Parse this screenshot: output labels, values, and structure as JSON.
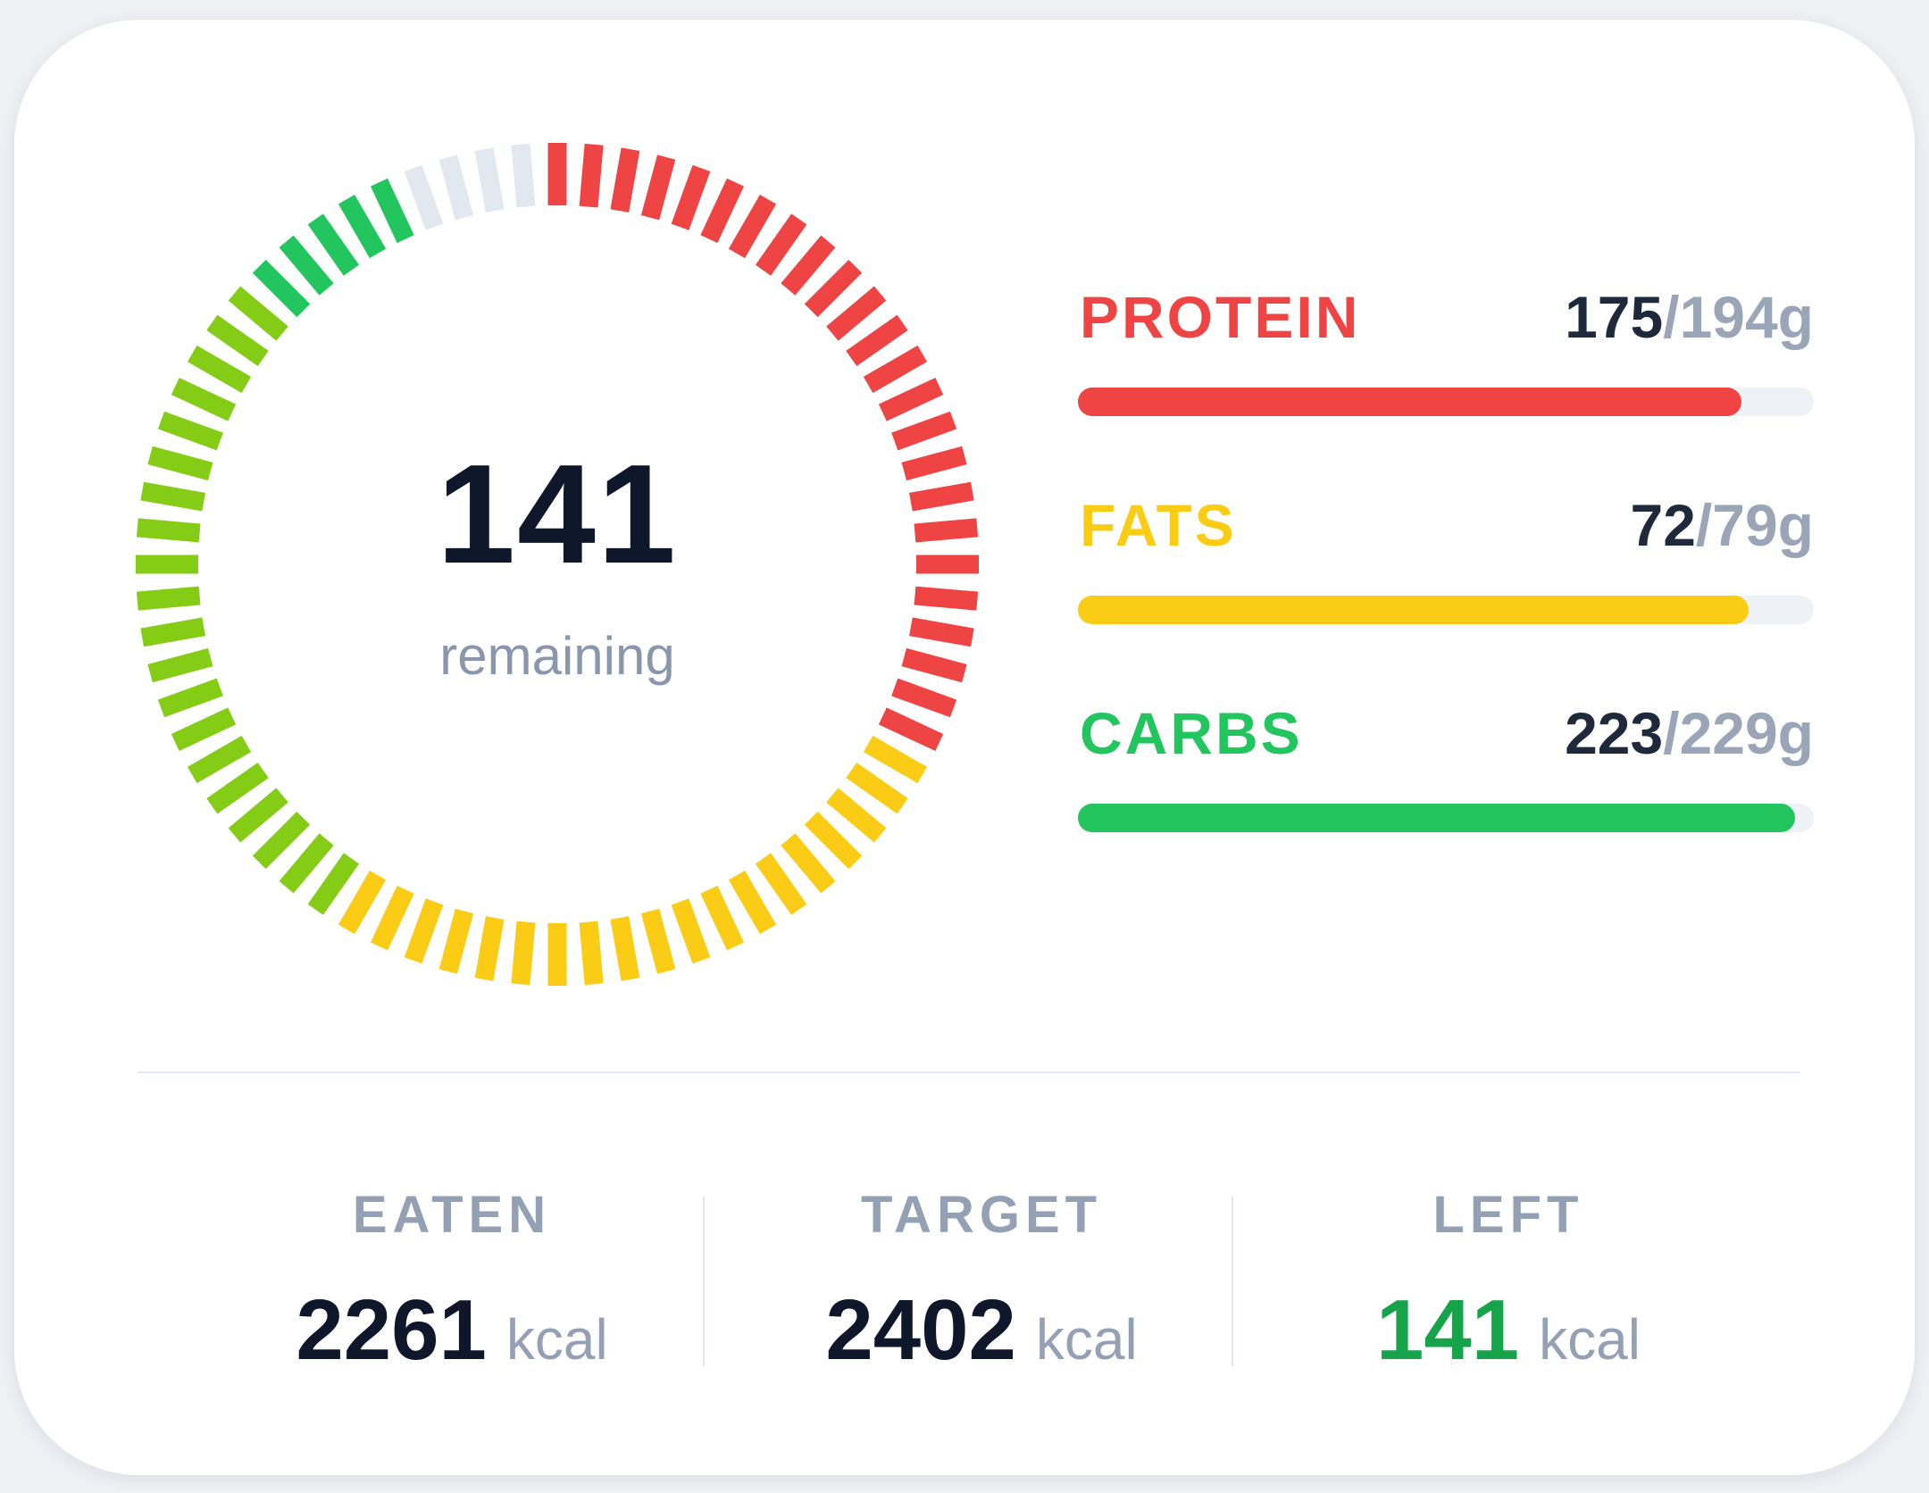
{
  "summary": {
    "remaining_value": "141",
    "remaining_label": "remaining"
  },
  "ring": {
    "segment_count": 72,
    "remaining_fraction": 0.0587,
    "segments_colors": {
      "protein": "#ef4444",
      "fats": "#facc15",
      "carbs_light": "#84cc16",
      "carbs_dark": "#22c55e",
      "empty": "#e2e8f0"
    }
  },
  "macros": [
    {
      "name": "PROTEIN",
      "eaten": "175",
      "separator": "/",
      "total": "194g",
      "color": "#ef4444",
      "progress": 0.902
    },
    {
      "name": "FATS",
      "eaten": "72",
      "separator": "/",
      "total": "79g",
      "color": "#facc15",
      "progress": 0.911
    },
    {
      "name": "CARBS",
      "eaten": "223",
      "separator": "/",
      "total": "229g",
      "color": "#22c55e",
      "progress": 0.974
    }
  ],
  "stats": {
    "eaten": {
      "label": "EATEN",
      "value": "2261",
      "unit": "kcal"
    },
    "target": {
      "label": "TARGET",
      "value": "2402",
      "unit": "kcal"
    },
    "left": {
      "label": "LEFT",
      "value": "141",
      "unit": "kcal",
      "color": "#16a34a"
    }
  }
}
